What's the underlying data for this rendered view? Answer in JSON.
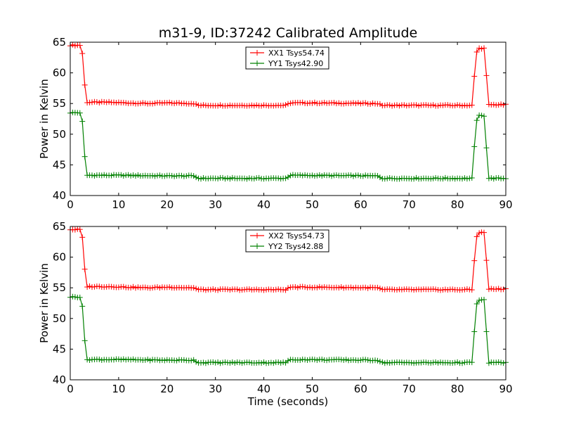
{
  "figure": {
    "title": "m31-9, ID:37242 Calibrated Amplitude",
    "xlabel": "Time (seconds)"
  },
  "chart_data": [
    {
      "type": "line",
      "title": "m31-9, ID:37242 Calibrated Amplitude",
      "xlabel": "",
      "ylabel": "Power in Kelvin",
      "xlim": [
        0,
        90
      ],
      "ylim": [
        40,
        65
      ],
      "xticks": [
        "0",
        "10",
        "20",
        "30",
        "40",
        "50",
        "60",
        "70",
        "80",
        "90"
      ],
      "yticks": [
        "40",
        "45",
        "50",
        "55",
        "60",
        "65"
      ],
      "grid": false,
      "legend_position": "top-center",
      "series": [
        {
          "name": "XX1 Tsys54.74",
          "color": "#ff0000",
          "marker": "plus",
          "profile": [
            [
              0,
              64.5
            ],
            [
              2.3,
              64.5
            ],
            [
              2.6,
              62.5
            ],
            [
              3.0,
              58.0
            ],
            [
              3.4,
              55.2
            ],
            [
              8,
              55.2
            ],
            [
              12,
              55.1
            ],
            [
              16,
              55.0
            ],
            [
              20,
              55.1
            ],
            [
              25.5,
              55.0
            ],
            [
              26.5,
              54.7
            ],
            [
              35,
              54.7
            ],
            [
              44.5,
              54.7
            ],
            [
              45.5,
              55.1
            ],
            [
              50,
              55.1
            ],
            [
              63.5,
              55.0
            ],
            [
              64.5,
              54.7
            ],
            [
              72,
              54.7
            ],
            [
              83,
              54.7
            ],
            [
              83.3,
              56.3
            ],
            [
              83.7,
              62.5
            ],
            [
              84.2,
              64.0
            ],
            [
              85.5,
              64.0
            ],
            [
              85.8,
              63.5
            ],
            [
              86.1,
              57.5
            ],
            [
              86.5,
              54.8
            ],
            [
              90,
              54.8
            ]
          ]
        },
        {
          "name": "YY1 Tsys42.90",
          "color": "#008000",
          "marker": "plus",
          "profile": [
            [
              0,
              53.5
            ],
            [
              2.3,
              53.5
            ],
            [
              2.6,
              51.3
            ],
            [
              3.0,
              46.3
            ],
            [
              3.4,
              43.3
            ],
            [
              10,
              43.3
            ],
            [
              20,
              43.2
            ],
            [
              25.5,
              43.2
            ],
            [
              26.5,
              42.8
            ],
            [
              44.5,
              42.8
            ],
            [
              45.5,
              43.3
            ],
            [
              63.5,
              43.2
            ],
            [
              64.5,
              42.8
            ],
            [
              83,
              42.8
            ],
            [
              83.3,
              44.5
            ],
            [
              83.7,
              51.3
            ],
            [
              84.2,
              53.0
            ],
            [
              85.5,
              53.0
            ],
            [
              85.8,
              52.5
            ],
            [
              86.1,
              45.5
            ],
            [
              86.5,
              42.8
            ],
            [
              90,
              42.8
            ]
          ]
        }
      ]
    },
    {
      "type": "line",
      "title": "",
      "xlabel": "Time (seconds)",
      "ylabel": "Power in Kelvin",
      "xlim": [
        0,
        90
      ],
      "ylim": [
        40,
        65
      ],
      "xticks": [
        "0",
        "10",
        "20",
        "30",
        "40",
        "50",
        "60",
        "70",
        "80",
        "90"
      ],
      "yticks": [
        "40",
        "45",
        "50",
        "55",
        "60",
        "65"
      ],
      "grid": false,
      "legend_position": "top-center",
      "series": [
        {
          "name": "XX2 Tsys54.73",
          "color": "#ff0000",
          "marker": "plus",
          "profile": [
            [
              0,
              64.5
            ],
            [
              2.3,
              64.5
            ],
            [
              2.6,
              62.5
            ],
            [
              3.0,
              58.0
            ],
            [
              3.4,
              55.2
            ],
            [
              8,
              55.2
            ],
            [
              12,
              55.1
            ],
            [
              16,
              55.0
            ],
            [
              20,
              55.1
            ],
            [
              25.5,
              55.0
            ],
            [
              26.5,
              54.7
            ],
            [
              35,
              54.7
            ],
            [
              44.5,
              54.7
            ],
            [
              45.5,
              55.1
            ],
            [
              50,
              55.1
            ],
            [
              63.5,
              55.0
            ],
            [
              64.5,
              54.7
            ],
            [
              72,
              54.7
            ],
            [
              83,
              54.7
            ],
            [
              83.3,
              56.3
            ],
            [
              83.7,
              62.5
            ],
            [
              84.2,
              64.0
            ],
            [
              85.5,
              64.0
            ],
            [
              85.8,
              63.5
            ],
            [
              86.1,
              57.5
            ],
            [
              86.5,
              54.8
            ],
            [
              90,
              54.8
            ]
          ]
        },
        {
          "name": "YY2 Tsys42.88",
          "color": "#008000",
          "marker": "plus",
          "profile": [
            [
              0,
              53.5
            ],
            [
              2.3,
              53.5
            ],
            [
              2.6,
              51.3
            ],
            [
              3.0,
              46.3
            ],
            [
              3.4,
              43.3
            ],
            [
              10,
              43.3
            ],
            [
              20,
              43.2
            ],
            [
              25.5,
              43.2
            ],
            [
              26.5,
              42.8
            ],
            [
              44.5,
              42.8
            ],
            [
              45.5,
              43.3
            ],
            [
              63.5,
              43.2
            ],
            [
              64.5,
              42.8
            ],
            [
              83,
              42.8
            ],
            [
              83.3,
              44.5
            ],
            [
              83.7,
              51.3
            ],
            [
              84.2,
              53.0
            ],
            [
              85.5,
              53.0
            ],
            [
              85.8,
              52.5
            ],
            [
              86.1,
              45.5
            ],
            [
              86.5,
              42.8
            ],
            [
              90,
              42.8
            ]
          ]
        }
      ]
    }
  ]
}
